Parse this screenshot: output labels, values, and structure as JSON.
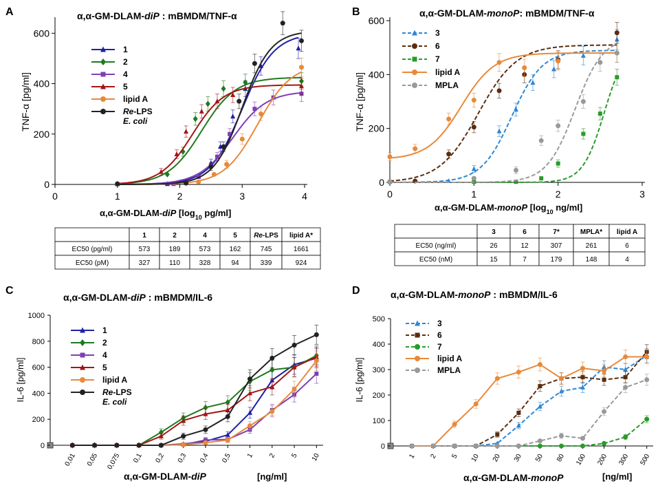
{
  "colors": {
    "c1": "#1f1fa8",
    "c2": "#1e7a1e",
    "c4": "#7d3fb5",
    "c5": "#a31515",
    "lipidA": "#e8893a",
    "reLPS": "#222222",
    "m3": "#2e86d4",
    "m6": "#5a2d10",
    "m7": "#2a9a2a",
    "mpla": "#999999",
    "grid": "#000000"
  },
  "chart_data": [
    {
      "id": "A",
      "type": "line",
      "panel_letter": "A",
      "title_parts": [
        "α,α-GM-DLAM-",
        "diP",
        " : mBMDM/TNF-α"
      ],
      "xlabel_parts": [
        "α,α-GM-DLAM-",
        "diP",
        " [log",
        "10",
        " pg/ml]"
      ],
      "ylabel": "TNF-α  [pg/ml]",
      "xlim": [
        0,
        4
      ],
      "ylim": [
        0,
        650
      ],
      "xticks": [
        0,
        1,
        2,
        3,
        4
      ],
      "yticks": [
        0,
        200,
        400,
        600
      ],
      "series": [
        {
          "name": "1",
          "color_key": "c1",
          "marker": "triangle",
          "style": "solid",
          "points": [
            [
              1,
              2
            ],
            [
              1.8,
              2
            ],
            [
              2.3,
              30
            ],
            [
              2.5,
              85
            ],
            [
              2.65,
              150
            ],
            [
              2.85,
              270
            ],
            [
              3.05,
              380
            ],
            [
              3.3,
              470
            ],
            [
              3.9,
              540
            ]
          ],
          "curve": {
            "bottom": 0,
            "top": 600,
            "ec50": 3.0,
            "hill": 1.7
          }
        },
        {
          "name": "2",
          "color_key": "c2",
          "marker": "diamond",
          "style": "solid",
          "points": [
            [
              1,
              2
            ],
            [
              1.8,
              40
            ],
            [
              2.05,
              130
            ],
            [
              2.25,
              260
            ],
            [
              2.45,
              320
            ],
            [
              2.7,
              380
            ],
            [
              3.05,
              405
            ],
            [
              3.95,
              410
            ]
          ],
          "curve": {
            "bottom": 0,
            "top": 425,
            "ec50": 2.35,
            "hill": 1.6
          }
        },
        {
          "name": "4",
          "color_key": "c4",
          "marker": "square",
          "style": "solid",
          "points": [
            [
              1,
              2
            ],
            [
              1.9,
              2
            ],
            [
              2.3,
              30
            ],
            [
              2.6,
              110
            ],
            [
              2.8,
              200
            ],
            [
              3.2,
              300
            ],
            [
              3.5,
              345
            ],
            [
              3.95,
              360
            ]
          ],
          "curve": {
            "bottom": 0,
            "top": 370,
            "ec50": 2.85,
            "hill": 1.6
          }
        },
        {
          "name": "5",
          "color_key": "c5",
          "marker": "triangle",
          "style": "solid",
          "points": [
            [
              1,
              2
            ],
            [
              1.7,
              50
            ],
            [
              1.95,
              120
            ],
            [
              2.1,
              210
            ],
            [
              2.35,
              290
            ],
            [
              2.6,
              330
            ],
            [
              2.85,
              355
            ],
            [
              3.95,
              390
            ]
          ],
          "curve": {
            "bottom": 0,
            "top": 395,
            "ec50": 2.2,
            "hill": 1.7
          }
        },
        {
          "name": "lipid A",
          "color_key": "lipidA",
          "marker": "circle",
          "style": "solid",
          "points": [
            [
              1,
              2
            ],
            [
              2.3,
              10
            ],
            [
              2.55,
              40
            ],
            [
              2.75,
              80
            ],
            [
              3.0,
              180
            ],
            [
              3.3,
              280
            ],
            [
              3.95,
              465
            ]
          ],
          "curve": {
            "bottom": 0,
            "top": 480,
            "ec50": 3.25,
            "hill": 1.6
          }
        },
        {
          "name": "Re-LPS",
          "name_line2": "E. coli",
          "color_key": "reLPS",
          "marker": "circle",
          "style": "solid",
          "points": [
            [
              1,
              2
            ],
            [
              2.1,
              5
            ],
            [
              2.5,
              70
            ],
            [
              2.7,
              150
            ],
            [
              2.95,
              330
            ],
            [
              3.2,
              480
            ],
            [
              3.65,
              640
            ],
            [
              3.95,
              570
            ]
          ],
          "curve": {
            "bottom": 0,
            "top": 610,
            "ec50": 3.0,
            "hill": 1.9
          }
        }
      ],
      "legend_labels": [
        "1",
        "2",
        "4",
        "5",
        "lipid A",
        "Re-LPS",
        "E. coli"
      ],
      "table": {
        "headers": [
          "",
          "1",
          "2",
          "4",
          "5",
          "Re-LPS",
          "lipid A*"
        ],
        "rows": [
          [
            "EC50 (pg/ml)",
            "573",
            "189",
            "573",
            "162",
            "745",
            "1661"
          ],
          [
            "EC50 (pM)",
            "327",
            "110",
            "328",
            "94",
            "339",
            "924"
          ]
        ]
      }
    },
    {
      "id": "B",
      "type": "line",
      "panel_letter": "B",
      "title_parts": [
        "α,α-GM-DLAM-",
        "monoP",
        ": mBMDM/TNF-α"
      ],
      "xlabel_parts": [
        "α,α-GM-DLAM-",
        "monoP",
        " [log",
        "10",
        " ng/ml]"
      ],
      "ylabel": "TNF-α  [pg/ml]",
      "xlim": [
        0,
        3
      ],
      "ylim": [
        0,
        600
      ],
      "xticks": [
        0,
        1,
        2,
        3
      ],
      "yticks": [
        0,
        200,
        400,
        600
      ],
      "series": [
        {
          "name": "3",
          "color_key": "m3",
          "marker": "triangle",
          "style": "dashed",
          "points": [
            [
              0,
              2
            ],
            [
              0.7,
              5
            ],
            [
              1.0,
              50
            ],
            [
              1.3,
              190
            ],
            [
              1.5,
              270
            ],
            [
              1.7,
              370
            ],
            [
              1.95,
              420
            ],
            [
              2.3,
              470
            ],
            [
              2.7,
              530
            ]
          ],
          "curve": {
            "bottom": 0,
            "top": 490,
            "ec50": 1.45,
            "hill": 2.4
          }
        },
        {
          "name": "6",
          "color_key": "m6",
          "marker": "circle",
          "style": "dashed",
          "points": [
            [
              0,
              2
            ],
            [
              0.3,
              5
            ],
            [
              0.7,
              105
            ],
            [
              1.0,
              205
            ],
            [
              1.3,
              340
            ],
            [
              1.6,
              400
            ],
            [
              2.0,
              455
            ],
            [
              2.7,
              555
            ]
          ],
          "curve": {
            "bottom": 0,
            "top": 510,
            "ec50": 1.05,
            "hill": 1.9
          }
        },
        {
          "name": "7",
          "color_key": "m7",
          "marker": "square",
          "style": "dashed",
          "points": [
            [
              0,
              2
            ],
            [
              1.0,
              2
            ],
            [
              1.5,
              2
            ],
            [
              1.8,
              15
            ],
            [
              2.0,
              70
            ],
            [
              2.3,
              180
            ],
            [
              2.5,
              255
            ],
            [
              2.7,
              390
            ]
          ],
          "curve": {
            "bottom": 0,
            "top": 520,
            "ec50": 2.55,
            "hill": 3.4
          }
        },
        {
          "name": "lipid A",
          "color_key": "lipidA",
          "marker": "circle",
          "style": "solid",
          "points": [
            [
              0,
              95
            ],
            [
              0.3,
              125
            ],
            [
              0.7,
              235
            ],
            [
              1.0,
              305
            ],
            [
              1.3,
              445
            ],
            [
              1.6,
              425
            ],
            [
              2.0,
              450
            ],
            [
              2.7,
              480
            ]
          ],
          "curve": {
            "bottom": 85,
            "top": 480,
            "ec50": 0.85,
            "hill": 2.2
          }
        },
        {
          "name": "MPLA",
          "color_key": "mpla",
          "marker": "circle",
          "style": "dashed",
          "points": [
            [
              0,
              2
            ],
            [
              1.0,
              15
            ],
            [
              1.5,
              45
            ],
            [
              1.8,
              155
            ],
            [
              2.0,
              210
            ],
            [
              2.3,
              300
            ],
            [
              2.5,
              445
            ],
            [
              2.7,
              480
            ]
          ],
          "curve": {
            "bottom": 0,
            "top": 540,
            "ec50": 2.2,
            "hill": 2.6
          }
        }
      ],
      "legend_labels": [
        "3",
        "6",
        "7",
        "lipid A",
        "MPLA"
      ],
      "table": {
        "headers": [
          "",
          "3",
          "6",
          "7*",
          "MPLA*",
          "lipid A"
        ],
        "rows": [
          [
            "EC50 (ng/ml)",
            "26",
            "12",
            "307",
            "261",
            "6"
          ],
          [
            "EC50 (nM)",
            "15",
            "7",
            "179",
            "148",
            "4"
          ]
        ]
      }
    },
    {
      "id": "C",
      "type": "line",
      "panel_letter": "C",
      "title_parts": [
        "α,α-GM-DLAM-",
        "diP",
        " : mBMDM/IL-6"
      ],
      "xlabel_parts": [
        "α,α-GM-DLAM-",
        "diP"
      ],
      "xunit": "[ng/ml]",
      "ylabel": "IL-6  [pg/ml]",
      "categories": [
        "0,01",
        "0,05",
        "0,075",
        "0,1",
        "0,2",
        "0,3",
        "0,4",
        "0,5",
        "1",
        "2",
        "5",
        "10"
      ],
      "ylim": [
        0,
        1000
      ],
      "yticks": [
        0,
        200,
        400,
        600,
        800,
        1000
      ],
      "series": [
        {
          "name": "1",
          "color_key": "c1",
          "marker": "triangle",
          "style": "solid",
          "values": [
            0,
            0,
            0,
            0,
            0,
            10,
            30,
            80,
            250,
            500,
            620,
            670
          ]
        },
        {
          "name": "2",
          "color_key": "c2",
          "marker": "diamond",
          "style": "solid",
          "values": [
            0,
            0,
            0,
            0,
            100,
            210,
            290,
            330,
            490,
            580,
            600,
            690
          ]
        },
        {
          "name": "4",
          "color_key": "c4",
          "marker": "square",
          "style": "solid",
          "values": [
            0,
            0,
            0,
            0,
            0,
            5,
            40,
            45,
            120,
            270,
            390,
            550
          ]
        },
        {
          "name": "5",
          "color_key": "c5",
          "marker": "triangle",
          "style": "solid",
          "values": [
            0,
            0,
            0,
            0,
            70,
            190,
            240,
            270,
            400,
            450,
            600,
            680
          ]
        },
        {
          "name": "lipid A",
          "color_key": "lipidA",
          "marker": "circle",
          "style": "solid",
          "values": [
            0,
            0,
            0,
            0,
            0,
            5,
            20,
            40,
            150,
            260,
            430,
            650
          ]
        },
        {
          "name": "Re-LPS",
          "name_line2": "E. coli",
          "color_key": "reLPS",
          "marker": "circle",
          "style": "solid",
          "values": [
            0,
            0,
            0,
            0,
            0,
            70,
            120,
            220,
            510,
            670,
            770,
            850
          ]
        }
      ],
      "legend_labels": [
        "1",
        "2",
        "4",
        "5",
        "lipid A",
        "Re-LPS",
        "E. coli"
      ]
    },
    {
      "id": "D",
      "type": "line",
      "panel_letter": "D",
      "title_parts": [
        "α,α-GM-DLAM-",
        "monoP",
        " : mBMDM/IL-6"
      ],
      "xlabel_parts": [
        "α,α-GM-DLAM-",
        "monoP"
      ],
      "xunit": "[ng/ml]",
      "ylabel": "IL-6  [pg/ml]",
      "categories": [
        "1",
        "2",
        "5",
        "10",
        "20",
        "30",
        "50",
        "80",
        "100",
        "200",
        "300",
        "500"
      ],
      "ylim": [
        0,
        500
      ],
      "yticks": [
        0,
        100,
        200,
        300,
        400,
        500
      ],
      "series": [
        {
          "name": "3",
          "color_key": "m3",
          "marker": "triangle",
          "style": "dashed",
          "values": [
            0,
            0,
            0,
            0,
            10,
            80,
            155,
            215,
            230,
            310,
            300,
            355
          ]
        },
        {
          "name": "6",
          "color_key": "m6",
          "marker": "square",
          "style": "dashed",
          "values": [
            0,
            0,
            0,
            0,
            45,
            130,
            235,
            265,
            270,
            260,
            270,
            370
          ]
        },
        {
          "name": "7",
          "color_key": "m7",
          "marker": "circle",
          "style": "dashed",
          "values": [
            0,
            0,
            0,
            0,
            0,
            0,
            0,
            0,
            0,
            10,
            35,
            105
          ]
        },
        {
          "name": "lipid A",
          "color_key": "lipidA",
          "marker": "circle",
          "style": "solid",
          "values": [
            0,
            0,
            85,
            165,
            265,
            290,
            320,
            265,
            305,
            295,
            350,
            350
          ]
        },
        {
          "name": "MPLA",
          "color_key": "mpla",
          "marker": "circle",
          "style": "dashed",
          "values": [
            0,
            0,
            0,
            0,
            0,
            0,
            20,
            40,
            30,
            135,
            230,
            260
          ]
        }
      ],
      "legend_labels": [
        "3",
        "6",
        "7",
        "lipid A",
        "MPLA"
      ]
    }
  ]
}
